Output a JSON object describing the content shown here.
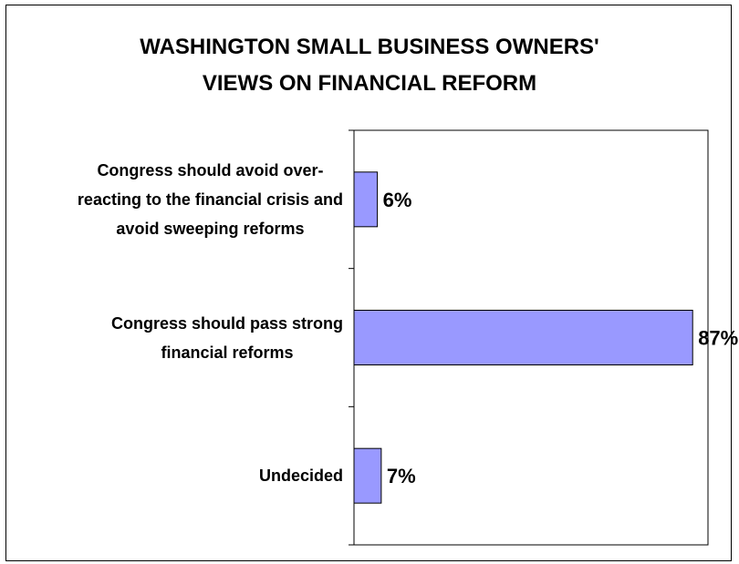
{
  "chart_data": {
    "type": "bar",
    "orientation": "horizontal",
    "title": [
      "WASHINGTON SMALL BUSINESS OWNERS'",
      "VIEWS ON FINANCIAL REFORM"
    ],
    "categories": [
      "Congress should avoid over-reacting to the financial crisis and avoid sweeping reforms",
      "Congress should pass strong financial reforms",
      "Undecided"
    ],
    "category_lines": [
      [
        "Congress should avoid over-",
        "reacting to the financial crisis and",
        "avoid sweeping reforms"
      ],
      [
        "Congress should pass strong",
        "financial reforms"
      ],
      [
        "Undecided"
      ]
    ],
    "values": [
      6,
      87,
      7
    ],
    "data_labels": [
      "6%",
      "87%",
      "7%"
    ],
    "xlim": [
      0,
      90
    ],
    "grid": false,
    "legend": "none",
    "bar_color": "#9999ff",
    "bar_stroke": "#000000"
  }
}
